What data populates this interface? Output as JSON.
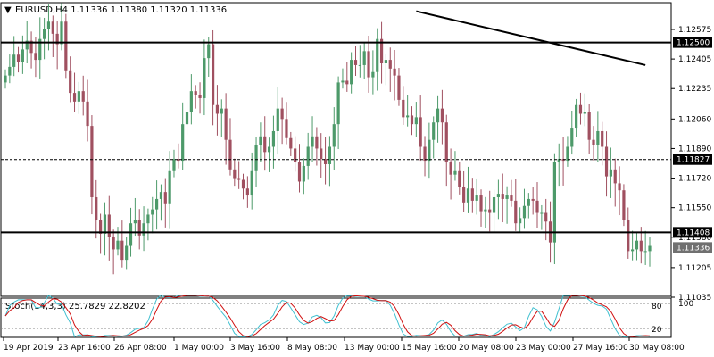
{
  "header": {
    "arrow": "▼",
    "text": "EURUSD,H4  1.11336 1.11380 1.11320 1.11336"
  },
  "stoch": {
    "label": "Stoch(14,3,3) 25.7829 22.8202",
    "levels": [
      20,
      80
    ],
    "level_labels": [
      "80",
      "20"
    ],
    "top_label": "100",
    "main_color": "#40c0d0",
    "signal_color": "#d01010"
  },
  "colors": {
    "bull": "#4d9a6a",
    "bear": "#a05060",
    "grid": "#000000",
    "background": "#ffffff"
  },
  "chart_data": {
    "type": "candlestick",
    "symbol": "EURUSD",
    "timeframe": "H4",
    "ylim": [
      1.1099,
      1.1268
    ],
    "y_ticks": [
      "1.12575",
      "1.12405",
      "1.12235",
      "1.12060",
      "1.11890",
      "1.11720",
      "1.11550",
      "1.11380",
      "1.11205",
      "1.11035"
    ],
    "x_ticks": [
      "19 Apr 2019",
      "23 Apr 16:00",
      "26 Apr 08:00",
      "1 May 00:00",
      "3 May 16:00",
      "8 May 08:00",
      "13 May 00:00",
      "15 May 16:00",
      "20 May 08:00",
      "23 May 00:00",
      "27 May 16:00",
      "30 May 08:00"
    ],
    "horizontal_levels": [
      {
        "price": 1.125,
        "label": "1.12500",
        "style": "solid"
      },
      {
        "price": 1.11827,
        "label": "1.11827",
        "style": "dashed"
      },
      {
        "price": 1.11408,
        "label": "1.11408",
        "style": "solid"
      }
    ],
    "current_price": {
      "price": 1.11336,
      "label": "1.11336"
    },
    "trendline": {
      "from_index": 95,
      "from_price": 1.1268,
      "to_index": 148,
      "to_price": 1.1237
    },
    "closes": [
      1.1231,
      1.1236,
      1.1243,
      1.1239,
      1.1246,
      1.1251,
      1.1244,
      1.124,
      1.1252,
      1.1258,
      1.1262,
      1.1255,
      1.1249,
      1.1262,
      1.1234,
      1.1221,
      1.1216,
      1.1222,
      1.1216,
      1.1202,
      1.1161,
      1.1148,
      1.114,
      1.1151,
      1.1138,
      1.1131,
      1.1136,
      1.1125,
      1.1133,
      1.1146,
      1.1148,
      1.1139,
      1.1146,
      1.1151,
      1.1154,
      1.116,
      1.1164,
      1.1157,
      1.1176,
      1.1183,
      1.1182,
      1.1203,
      1.121,
      1.1222,
      1.122,
      1.1218,
      1.1241,
      1.1249,
      1.1214,
      1.1209,
      1.1212,
      1.1194,
      1.1177,
      1.1172,
      1.1171,
      1.1166,
      1.1162,
      1.1176,
      1.1191,
      1.1196,
      1.1187,
      1.119,
      1.1199,
      1.1212,
      1.1206,
      1.1195,
      1.1189,
      1.1181,
      1.117,
      1.1179,
      1.119,
      1.1196,
      1.1189,
      1.1183,
      1.118,
      1.119,
      1.1203,
      1.1227,
      1.1228,
      1.1226,
      1.124,
      1.1237,
      1.1237,
      1.1245,
      1.123,
      1.1233,
      1.1252,
      1.1238,
      1.124,
      1.1235,
      1.1231,
      1.1217,
      1.1207,
      1.1208,
      1.1203,
      1.1207,
      1.119,
      1.1182,
      1.1194,
      1.1204,
      1.1212,
      1.1204,
      1.1181,
      1.1174,
      1.1176,
      1.1167,
      1.1158,
      1.1166,
      1.1159,
      1.1162,
      1.1153,
      1.1154,
      1.1152,
      1.1161,
      1.1163,
      1.116,
      1.1162,
      1.1159,
      1.1146,
      1.1149,
      1.1156,
      1.116,
      1.1159,
      1.1152,
      1.1152,
      1.1147,
      1.1135,
      1.1181,
      1.1183,
      1.1182,
      1.119,
      1.1201,
      1.1214,
      1.1209,
      1.121,
      1.1194,
      1.1191,
      1.1199,
      1.119,
      1.1173,
      1.1177,
      1.1169,
      1.1165,
      1.1148,
      1.113,
      1.1131,
      1.1136,
      1.113,
      1.113,
      1.1133
    ]
  }
}
